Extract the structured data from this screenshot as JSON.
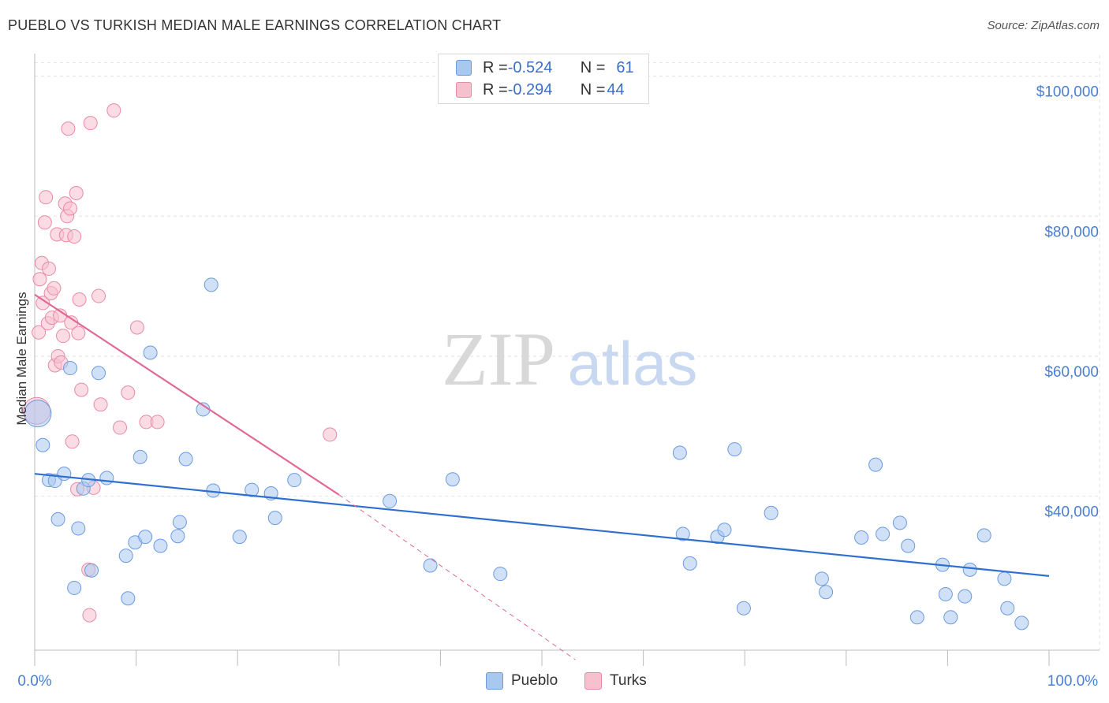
{
  "title": "PUEBLO VS TURKISH MEDIAN MALE EARNINGS CORRELATION CHART",
  "source": "Source: ZipAtlas.com",
  "watermark": {
    "zip": "ZIP",
    "atlas": "atlas"
  },
  "legend": {
    "rows": [
      {
        "r_label": "R = ",
        "r_value": "-0.524",
        "n_label": "N = ",
        "n_value": "61",
        "color": "#a9c8f0",
        "border": "#6a9be0"
      },
      {
        "r_label": "R = ",
        "r_value": "-0.294",
        "n_label": "N = ",
        "n_value": "44",
        "color": "#f7c0cf",
        "border": "#e88aa6"
      }
    ]
  },
  "bottom_legend": [
    {
      "label": "Pueblo",
      "color": "#a9c8f0",
      "border": "#6a9be0"
    },
    {
      "label": "Turks",
      "color": "#f7c0cf",
      "border": "#e88aa6"
    }
  ],
  "chart_data": {
    "type": "scatter",
    "title": "PUEBLO VS TURKISH MEDIAN MALE EARNINGS CORRELATION CHART",
    "xlabel": "",
    "ylabel": "Median Male Earnings",
    "xlim": [
      0,
      100
    ],
    "ylim": [
      18000,
      103000
    ],
    "x_tick_labels": [
      "0.0%",
      "100.0%"
    ],
    "y_ticks": [
      40000,
      60000,
      80000,
      100000
    ],
    "y_tick_labels": [
      "$40,000",
      "$60,000",
      "$80,000",
      "$100,000"
    ],
    "grid": true,
    "legend_position": "top-center",
    "series": [
      {
        "name": "Pueblo",
        "color": "#a9c8f0",
        "stroke": "#6a9be0",
        "line_color": "#2f6fd0",
        "trend": {
          "x": [
            0,
            100
          ],
          "y": [
            43200,
            28600
          ]
        },
        "points": [
          {
            "x": 0.3,
            "y": 51800,
            "big": true
          },
          {
            "x": 0.8,
            "y": 47300
          },
          {
            "x": 1.4,
            "y": 42300
          },
          {
            "x": 2.0,
            "y": 42200
          },
          {
            "x": 2.3,
            "y": 36700
          },
          {
            "x": 2.9,
            "y": 43200
          },
          {
            "x": 3.5,
            "y": 58300
          },
          {
            "x": 3.9,
            "y": 26900
          },
          {
            "x": 4.3,
            "y": 35400
          },
          {
            "x": 4.8,
            "y": 41100
          },
          {
            "x": 5.3,
            "y": 42300
          },
          {
            "x": 5.6,
            "y": 29400
          },
          {
            "x": 6.3,
            "y": 57600
          },
          {
            "x": 7.1,
            "y": 42600
          },
          {
            "x": 9.0,
            "y": 31500
          },
          {
            "x": 9.2,
            "y": 25400
          },
          {
            "x": 9.9,
            "y": 33400
          },
          {
            "x": 10.4,
            "y": 45600
          },
          {
            "x": 10.9,
            "y": 34200
          },
          {
            "x": 11.4,
            "y": 60500
          },
          {
            "x": 12.4,
            "y": 32900
          },
          {
            "x": 14.1,
            "y": 34300
          },
          {
            "x": 14.3,
            "y": 36300
          },
          {
            "x": 14.9,
            "y": 45300
          },
          {
            "x": 16.6,
            "y": 52400
          },
          {
            "x": 17.4,
            "y": 70200
          },
          {
            "x": 17.6,
            "y": 40800
          },
          {
            "x": 20.2,
            "y": 34200
          },
          {
            "x": 21.4,
            "y": 40900
          },
          {
            "x": 23.3,
            "y": 40400
          },
          {
            "x": 23.7,
            "y": 36900
          },
          {
            "x": 25.6,
            "y": 42300
          },
          {
            "x": 35.0,
            "y": 39300
          },
          {
            "x": 39.0,
            "y": 30100
          },
          {
            "x": 41.2,
            "y": 42400
          },
          {
            "x": 45.9,
            "y": 28900
          },
          {
            "x": 63.6,
            "y": 46200
          },
          {
            "x": 63.9,
            "y": 34600
          },
          {
            "x": 64.6,
            "y": 30400
          },
          {
            "x": 67.3,
            "y": 34200
          },
          {
            "x": 68.0,
            "y": 35200
          },
          {
            "x": 69.0,
            "y": 46700
          },
          {
            "x": 69.9,
            "y": 24000
          },
          {
            "x": 72.6,
            "y": 37600
          },
          {
            "x": 77.6,
            "y": 28200
          },
          {
            "x": 78.0,
            "y": 26300
          },
          {
            "x": 81.5,
            "y": 34100
          },
          {
            "x": 82.9,
            "y": 44500
          },
          {
            "x": 83.6,
            "y": 34600
          },
          {
            "x": 85.3,
            "y": 36200
          },
          {
            "x": 86.1,
            "y": 32900
          },
          {
            "x": 87.0,
            "y": 22700
          },
          {
            "x": 89.5,
            "y": 30200
          },
          {
            "x": 89.8,
            "y": 26000
          },
          {
            "x": 90.3,
            "y": 22700
          },
          {
            "x": 91.7,
            "y": 25700
          },
          {
            "x": 92.2,
            "y": 29500
          },
          {
            "x": 93.6,
            "y": 34400
          },
          {
            "x": 95.6,
            "y": 28200
          },
          {
            "x": 95.9,
            "y": 24000
          },
          {
            "x": 97.3,
            "y": 21900
          }
        ]
      },
      {
        "name": "Turks",
        "color": "#f7c0cf",
        "stroke": "#e88aa6",
        "line_color": "#e06a95",
        "trend": {
          "x": [
            0,
            30
          ],
          "y": [
            68800,
            40200
          ]
        },
        "trend_dashed": {
          "x": [
            30,
            100
          ],
          "y": [
            40200,
            -26500
          ]
        },
        "points": [
          {
            "x": 0.2,
            "y": 52200,
            "big": true
          },
          {
            "x": 0.4,
            "y": 63400
          },
          {
            "x": 0.5,
            "y": 71000
          },
          {
            "x": 0.7,
            "y": 73300
          },
          {
            "x": 0.8,
            "y": 67600
          },
          {
            "x": 1.0,
            "y": 79100
          },
          {
            "x": 1.1,
            "y": 82700
          },
          {
            "x": 1.3,
            "y": 64700
          },
          {
            "x": 1.4,
            "y": 72500
          },
          {
            "x": 1.6,
            "y": 69000
          },
          {
            "x": 1.7,
            "y": 65500
          },
          {
            "x": 1.9,
            "y": 69700
          },
          {
            "x": 2.0,
            "y": 58700
          },
          {
            "x": 2.2,
            "y": 77400
          },
          {
            "x": 2.3,
            "y": 60000
          },
          {
            "x": 2.5,
            "y": 65800
          },
          {
            "x": 2.6,
            "y": 59100
          },
          {
            "x": 2.8,
            "y": 62900
          },
          {
            "x": 3.0,
            "y": 81800
          },
          {
            "x": 3.1,
            "y": 77300
          },
          {
            "x": 3.2,
            "y": 80000
          },
          {
            "x": 3.3,
            "y": 92500
          },
          {
            "x": 3.5,
            "y": 81100
          },
          {
            "x": 3.6,
            "y": 64800
          },
          {
            "x": 3.7,
            "y": 47800
          },
          {
            "x": 3.9,
            "y": 77100
          },
          {
            "x": 4.1,
            "y": 83300
          },
          {
            "x": 4.2,
            "y": 41000
          },
          {
            "x": 4.3,
            "y": 63300
          },
          {
            "x": 4.4,
            "y": 68100
          },
          {
            "x": 4.6,
            "y": 55200
          },
          {
            "x": 5.3,
            "y": 29500
          },
          {
            "x": 5.4,
            "y": 23000
          },
          {
            "x": 5.5,
            "y": 93300
          },
          {
            "x": 5.8,
            "y": 41200
          },
          {
            "x": 6.3,
            "y": 68600
          },
          {
            "x": 6.5,
            "y": 53100
          },
          {
            "x": 7.8,
            "y": 95100
          },
          {
            "x": 8.4,
            "y": 49800
          },
          {
            "x": 9.2,
            "y": 54800
          },
          {
            "x": 10.1,
            "y": 64100
          },
          {
            "x": 11.0,
            "y": 50600
          },
          {
            "x": 12.1,
            "y": 50600
          },
          {
            "x": 29.1,
            "y": 48800
          }
        ]
      }
    ]
  }
}
